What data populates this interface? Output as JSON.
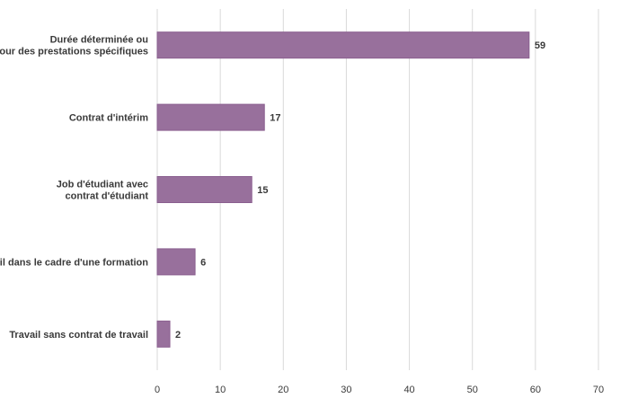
{
  "chart_data": {
    "type": "bar",
    "orientation": "horizontal",
    "categories": [
      [
        "Durée déterminée ou",
        "pour des prestations spécifiques"
      ],
      [
        "Contrat d'intérim"
      ],
      [
        "Job d'étudiant avec",
        "contrat d'étudiant"
      ],
      [
        "Travail dans le cadre d'une formation"
      ],
      [
        "Travail sans contrat de travail"
      ]
    ],
    "values": [
      59,
      17,
      15,
      6,
      2
    ],
    "xlim": [
      0,
      70
    ],
    "xticks": [
      0,
      10,
      20,
      30,
      40,
      50,
      60,
      70
    ],
    "grid": true,
    "bar_color": "#98709c",
    "bar_edge_color": "#8a5f8f",
    "grid_color": "#d9d9d9",
    "text_color": "#3a3a3a"
  }
}
